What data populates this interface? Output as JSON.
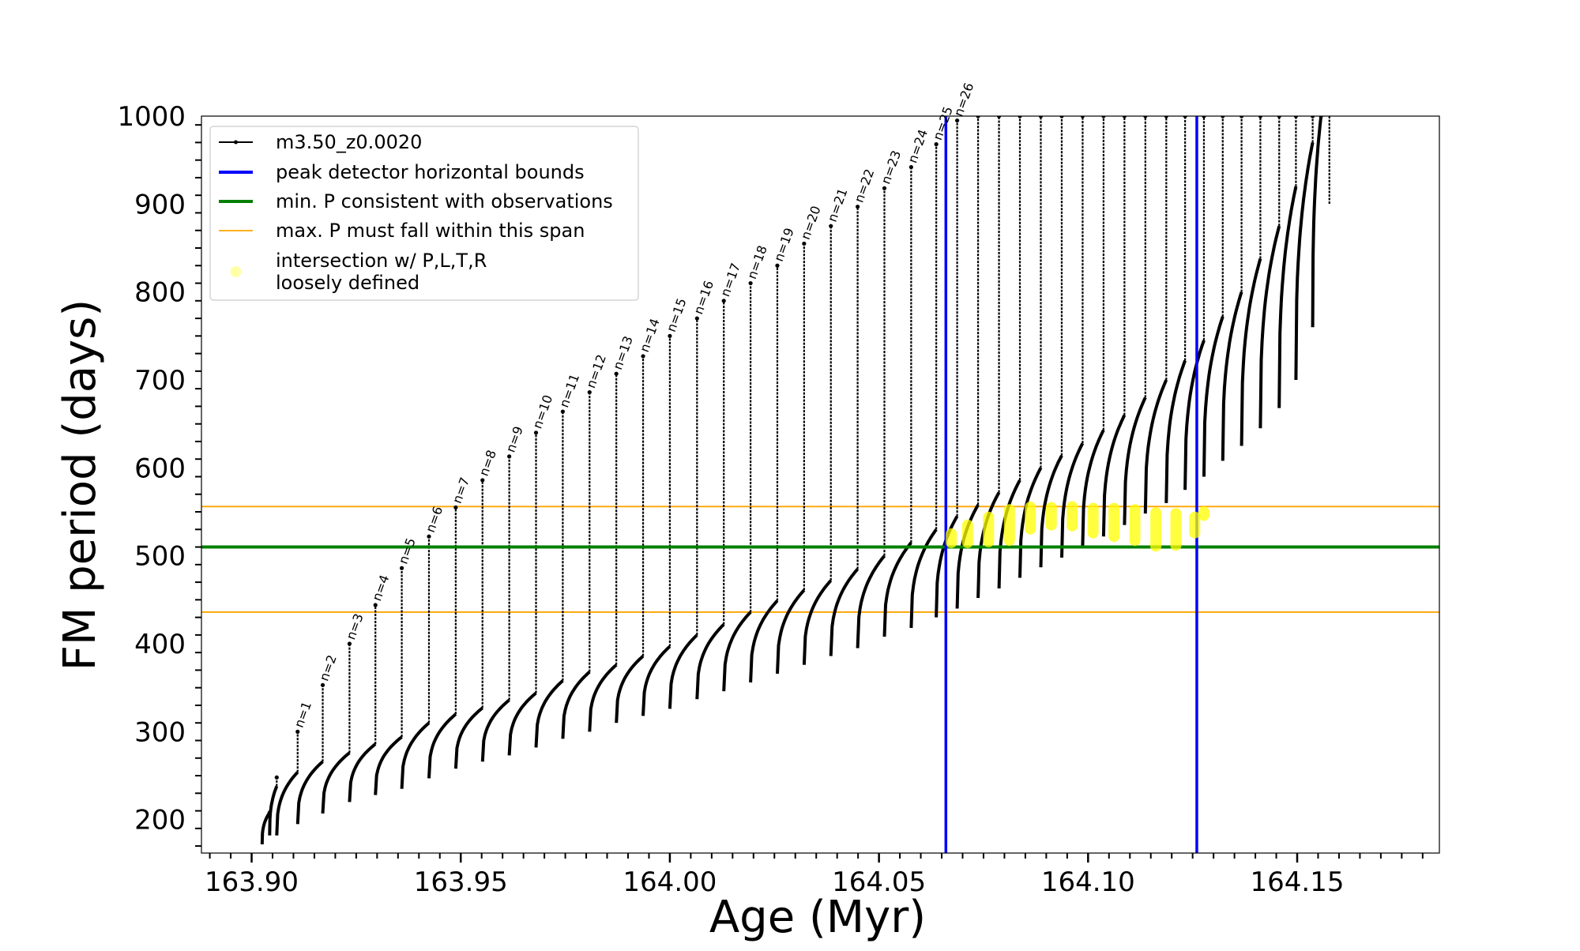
{
  "chart_data": {
    "type": "line",
    "title": "",
    "xlabel": "Age (Myr)",
    "ylabel": "FM period (days)",
    "xlim": [
      163.888,
      164.184
    ],
    "ylim": [
      162,
      1000
    ],
    "xticks": [
      "163.90",
      "163.95",
      "164.00",
      "164.05",
      "164.10",
      "164.15"
    ],
    "xtick_values": [
      163.9,
      163.95,
      164.0,
      164.05,
      164.1,
      164.15
    ],
    "yticks": [
      "200",
      "300",
      "400",
      "500",
      "600",
      "700",
      "800",
      "900",
      "1000"
    ],
    "ytick_values": [
      200,
      300,
      400,
      500,
      600,
      700,
      800,
      900,
      1000
    ],
    "legend_position": "top-left",
    "legend": [
      {
        "label": "m3.50_z0.0020",
        "style": "line-marker",
        "color": "#000000"
      },
      {
        "label": "peak detector horizontal bounds",
        "style": "line",
        "color": "#0000ff"
      },
      {
        "label": "min. P consistent with observations",
        "style": "line",
        "color": "#008000"
      },
      {
        "label": "max. P must fall within this span",
        "style": "line-thin",
        "color": "#ffa500"
      },
      {
        "label": "intersection w/ P,L,T,R\nloosely defined",
        "style": "dot",
        "color": "#ffff00"
      }
    ],
    "vertical_lines": {
      "name": "peak detector horizontal bounds",
      "x": [
        164.066,
        164.126
      ],
      "color": "#0000ff"
    },
    "min_period_line": {
      "name": "min. P consistent with observations",
      "y": 510,
      "color": "#008000"
    },
    "max_period_span": {
      "name": "max. P must fall within this span",
      "y": [
        436,
        556
      ],
      "color": "#ffa500"
    },
    "series": [
      {
        "name": "m3.50_z0.0020",
        "color": "#000000",
        "pulses": [
          {
            "t0": 163.9025,
            "t1": 163.9043,
            "p0": 172,
            "p1": 208,
            "top": 208,
            "label": ""
          },
          {
            "t0": 163.9043,
            "t1": 163.906,
            "p0": 182,
            "p1": 238,
            "top": 248,
            "label": ""
          },
          {
            "t0": 163.906,
            "t1": 163.911,
            "p0": 182,
            "p1": 254,
            "top": 300,
            "label": "n=1"
          },
          {
            "t0": 163.911,
            "t1": 163.917,
            "p0": 195,
            "p1": 266,
            "top": 353,
            "label": "n=2"
          },
          {
            "t0": 163.917,
            "t1": 163.9234,
            "p0": 207,
            "p1": 276,
            "top": 400,
            "label": "n=3"
          },
          {
            "t0": 163.9234,
            "t1": 163.9296,
            "p0": 220,
            "p1": 286,
            "top": 444,
            "label": "n=4"
          },
          {
            "t0": 163.9296,
            "t1": 163.9359,
            "p0": 228,
            "p1": 294,
            "top": 486,
            "label": "n=5"
          },
          {
            "t0": 163.9359,
            "t1": 163.9424,
            "p0": 235,
            "p1": 310,
            "top": 522,
            "label": "n=6"
          },
          {
            "t0": 163.9424,
            "t1": 163.9488,
            "p0": 247,
            "p1": 320,
            "top": 555,
            "label": "n=7"
          },
          {
            "t0": 163.9488,
            "t1": 163.9552,
            "p0": 258,
            "p1": 327,
            "top": 586,
            "label": "n=8"
          },
          {
            "t0": 163.9552,
            "t1": 163.9616,
            "p0": 266,
            "p1": 336,
            "top": 613,
            "label": "n=9"
          },
          {
            "t0": 163.9616,
            "t1": 163.968,
            "p0": 273,
            "p1": 344,
            "top": 640,
            "label": "n=10"
          },
          {
            "t0": 163.968,
            "t1": 163.9744,
            "p0": 282,
            "p1": 358,
            "top": 664,
            "label": "n=11"
          },
          {
            "t0": 163.9744,
            "t1": 163.9808,
            "p0": 292,
            "p1": 368,
            "top": 686,
            "label": "n=12"
          },
          {
            "t0": 163.9808,
            "t1": 163.9872,
            "p0": 300,
            "p1": 376,
            "top": 707,
            "label": "n=13"
          },
          {
            "t0": 163.9872,
            "t1": 163.9936,
            "p0": 310,
            "p1": 386,
            "top": 727,
            "label": "n=14"
          },
          {
            "t0": 163.9936,
            "t1": 164.0,
            "p0": 318,
            "p1": 397,
            "top": 750,
            "label": "n=15"
          },
          {
            "t0": 164.0,
            "t1": 164.0065,
            "p0": 326,
            "p1": 410,
            "top": 770,
            "label": "n=16"
          },
          {
            "t0": 164.0065,
            "t1": 164.0129,
            "p0": 337,
            "p1": 422,
            "top": 790,
            "label": "n=17"
          },
          {
            "t0": 164.0129,
            "t1": 164.0193,
            "p0": 346,
            "p1": 436,
            "top": 810,
            "label": "n=18"
          },
          {
            "t0": 164.0193,
            "t1": 164.0257,
            "p0": 356,
            "p1": 449,
            "top": 830,
            "label": "n=19"
          },
          {
            "t0": 164.0257,
            "t1": 164.0321,
            "p0": 366,
            "p1": 461,
            "top": 855,
            "label": "n=20"
          },
          {
            "t0": 164.0321,
            "t1": 164.0385,
            "p0": 376,
            "p1": 472,
            "top": 875,
            "label": "n=21"
          },
          {
            "t0": 164.0385,
            "t1": 164.0449,
            "p0": 386,
            "p1": 485,
            "top": 897,
            "label": "n=22"
          },
          {
            "t0": 164.0449,
            "t1": 164.0513,
            "p0": 395,
            "p1": 500,
            "top": 918,
            "label": "n=23"
          },
          {
            "t0": 164.0513,
            "t1": 164.0577,
            "p0": 408,
            "p1": 515,
            "top": 942,
            "label": "n=24"
          },
          {
            "t0": 164.0577,
            "t1": 164.0637,
            "p0": 418,
            "p1": 530,
            "top": 968,
            "label": "n=25"
          },
          {
            "t0": 164.0637,
            "t1": 164.0687,
            "p0": 430,
            "p1": 545,
            "top": 995,
            "label": "n=26"
          },
          {
            "t0": 164.0687,
            "t1": 164.0737,
            "p0": 440,
            "p1": 558,
            "top": 1000,
            "label": ""
          },
          {
            "t0": 164.0737,
            "t1": 164.0787,
            "p0": 452,
            "p1": 572,
            "top": 1000,
            "label": ""
          },
          {
            "t0": 164.0787,
            "t1": 164.0837,
            "p0": 463,
            "p1": 586,
            "top": 1000,
            "label": ""
          },
          {
            "t0": 164.0837,
            "t1": 164.0887,
            "p0": 475,
            "p1": 600,
            "top": 1000,
            "label": ""
          },
          {
            "t0": 164.0887,
            "t1": 164.0937,
            "p0": 487,
            "p1": 614,
            "top": 1000,
            "label": ""
          },
          {
            "t0": 164.0937,
            "t1": 164.0987,
            "p0": 498,
            "p1": 628,
            "top": 1000,
            "label": ""
          },
          {
            "t0": 164.0987,
            "t1": 164.1037,
            "p0": 510,
            "p1": 643,
            "top": 1000,
            "label": ""
          },
          {
            "t0": 164.1037,
            "t1": 164.1087,
            "p0": 522,
            "p1": 660,
            "top": 1000,
            "label": ""
          },
          {
            "t0": 164.1087,
            "t1": 164.1137,
            "p0": 535,
            "p1": 680,
            "top": 1000,
            "label": ""
          },
          {
            "t0": 164.1137,
            "t1": 164.1187,
            "p0": 548,
            "p1": 700,
            "top": 1000,
            "label": ""
          },
          {
            "t0": 164.1187,
            "t1": 164.1232,
            "p0": 560,
            "p1": 722,
            "top": 1000,
            "label": ""
          },
          {
            "t0": 164.1232,
            "t1": 164.1277,
            "p0": 575,
            "p1": 745,
            "top": 1000,
            "label": ""
          },
          {
            "t0": 164.1277,
            "t1": 164.1322,
            "p0": 590,
            "p1": 772,
            "top": 1000,
            "label": ""
          },
          {
            "t0": 164.1322,
            "t1": 164.1367,
            "p0": 608,
            "p1": 800,
            "top": 1000,
            "label": ""
          },
          {
            "t0": 164.1367,
            "t1": 164.1412,
            "p0": 625,
            "p1": 838,
            "top": 1000,
            "label": ""
          },
          {
            "t0": 164.1412,
            "t1": 164.1457,
            "p0": 645,
            "p1": 875,
            "top": 1000,
            "label": ""
          },
          {
            "t0": 164.1457,
            "t1": 164.1497,
            "p0": 668,
            "p1": 920,
            "top": 1000,
            "label": ""
          },
          {
            "t0": 164.1497,
            "t1": 164.1537,
            "p0": 700,
            "p1": 970,
            "top": 1000,
            "label": ""
          },
          {
            "t0": 164.1537,
            "t1": 164.1557,
            "p0": 760,
            "p1": 1000,
            "top": 1000,
            "label": ""
          }
        ],
        "tail_drop": {
          "x": 164.1577,
          "top": 1000,
          "bottom": 900
        }
      }
    ],
    "intersections": {
      "name": "intersection w/ P,L,T,R loosely defined",
      "color": "#ffff00",
      "points": [
        {
          "x": 164.0673,
          "y": 520,
          "h": 10
        },
        {
          "x": 164.0712,
          "y": 525,
          "h": 20
        },
        {
          "x": 164.0762,
          "y": 530,
          "h": 28
        },
        {
          "x": 164.0812,
          "y": 535,
          "h": 35
        },
        {
          "x": 164.0862,
          "y": 543,
          "h": 25
        },
        {
          "x": 164.0912,
          "y": 545,
          "h": 20
        },
        {
          "x": 164.0962,
          "y": 545,
          "h": 22
        },
        {
          "x": 164.1012,
          "y": 540,
          "h": 28
        },
        {
          "x": 164.1062,
          "y": 538,
          "h": 32
        },
        {
          "x": 164.1112,
          "y": 535,
          "h": 35
        },
        {
          "x": 164.1162,
          "y": 530,
          "h": 38
        },
        {
          "x": 164.121,
          "y": 530,
          "h": 36
        },
        {
          "x": 164.1255,
          "y": 535,
          "h": 18
        },
        {
          "x": 164.1277,
          "y": 548,
          "h": 4
        }
      ]
    }
  }
}
